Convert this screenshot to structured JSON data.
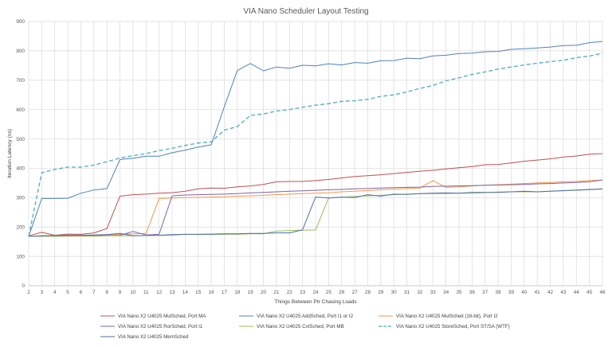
{
  "chart_data": {
    "type": "line",
    "title": "VIA Nano Scheduler Layout Testing",
    "xlabel": "Things Between  Ptr Chasing Loads",
    "ylabel": "Iteration Latency (ns)",
    "x": [
      2,
      3,
      4,
      5,
      6,
      7,
      8,
      9,
      10,
      11,
      12,
      13,
      14,
      15,
      16,
      17,
      18,
      19,
      20,
      21,
      22,
      23,
      24,
      25,
      26,
      27,
      28,
      29,
      30,
      31,
      32,
      33,
      34,
      35,
      36,
      37,
      38,
      39,
      40,
      41,
      42,
      43,
      44,
      45,
      46
    ],
    "xlim": [
      2,
      46
    ],
    "ylim": [
      0,
      900
    ],
    "yticks": [
      0,
      100,
      200,
      300,
      400,
      500,
      600,
      700,
      800,
      900
    ],
    "grid": true,
    "legend_position": "bottom",
    "series": [
      {
        "name": "VIA Nano X2 U4025 MulSched, Port MA",
        "color": "#c0504d",
        "dashed": false,
        "values": [
          170,
          182,
          172,
          176,
          175,
          180,
          195,
          305,
          310,
          312,
          315,
          317,
          322,
          330,
          333,
          332,
          337,
          340,
          345,
          354,
          355,
          355,
          358,
          362,
          367,
          372,
          375,
          378,
          382,
          386,
          390,
          393,
          398,
          402,
          406,
          412,
          413,
          418,
          424,
          428,
          432,
          438,
          442,
          448,
          450
        ]
      },
      {
        "name": "VIA Nano X2 U4025 AddSched, Port I1 or I2",
        "color": "#4f81bd",
        "dashed": false,
        "values": [
          168,
          297,
          297,
          298,
          315,
          326,
          331,
          430,
          434,
          441,
          441,
          453,
          462,
          472,
          480,
          610,
          733,
          757,
          732,
          745,
          741,
          751,
          749,
          756,
          752,
          760,
          758,
          766,
          767,
          775,
          773,
          783,
          785,
          791,
          792,
          797,
          798,
          805,
          807,
          810,
          813,
          818,
          819,
          828,
          832
        ]
      },
      {
        "name": "VIA Nano X2 U4025 MulSched (16-bit), Port I2",
        "color": "#f79646",
        "dashed": false,
        "values": [
          168,
          170,
          171,
          172,
          172,
          173,
          174,
          175,
          177,
          178,
          297,
          299,
          300,
          301,
          302,
          303,
          305,
          306,
          308,
          310,
          312,
          314,
          315,
          317,
          320,
          322,
          324,
          327,
          329,
          331,
          333,
          358,
          335,
          337,
          340,
          342,
          344,
          346,
          348,
          350,
          352,
          354,
          355,
          358,
          360
        ]
      },
      {
        "name": "VIA Nano X2 U4025 RorSched, Port I1",
        "color": "#8064a2",
        "dashed": false,
        "values": [
          168,
          168,
          169,
          169,
          170,
          170,
          171,
          172,
          185,
          173,
          175,
          306,
          309,
          310,
          311,
          312,
          314,
          316,
          318,
          320,
          322,
          323,
          325,
          327,
          328,
          330,
          331,
          333,
          334,
          335,
          336,
          338,
          339,
          340,
          341,
          342,
          343,
          344,
          345,
          347,
          348,
          350,
          352,
          354,
          360
        ]
      },
      {
        "name": "VIA Nano X2 U4025 CvtSched, Port MB",
        "color": "#9bbb59",
        "dashed": false,
        "values": [
          168,
          168,
          168,
          169,
          169,
          169,
          170,
          170,
          170,
          171,
          171,
          172,
          175,
          174,
          174,
          175,
          175,
          177,
          177,
          186,
          188,
          189,
          190,
          299,
          301,
          304,
          306,
          308,
          310,
          312,
          313,
          314,
          314,
          315,
          315,
          317,
          319,
          320,
          320,
          320,
          322,
          323,
          325,
          327,
          329
        ]
      },
      {
        "name": "VIA Nano X2 U4025 StoreSched, Port ST/SA (WTF)",
        "color": "#4bacc6",
        "dashed": true,
        "values": [
          168,
          385,
          396,
          404,
          404,
          411,
          422,
          435,
          443,
          450,
          460,
          468,
          478,
          486,
          490,
          530,
          542,
          580,
          585,
          595,
          600,
          608,
          615,
          620,
          628,
          630,
          635,
          645,
          650,
          660,
          672,
          682,
          698,
          708,
          720,
          728,
          738,
          745,
          752,
          758,
          763,
          768,
          777,
          782,
          792
        ]
      },
      {
        "name": "VIA Nano X2 U4025 MemSched",
        "color": "#4f6fa8",
        "dashed": false,
        "values": [
          168,
          170,
          171,
          172,
          172,
          173,
          174,
          178,
          170,
          171,
          172,
          174,
          175,
          175,
          176,
          177,
          177,
          178,
          178,
          180,
          180,
          190,
          302,
          299,
          302,
          300,
          310,
          305,
          312,
          311,
          314,
          315,
          316,
          315,
          318,
          318,
          318,
          320,
          322,
          320,
          322,
          324,
          326,
          328,
          330
        ]
      }
    ]
  }
}
